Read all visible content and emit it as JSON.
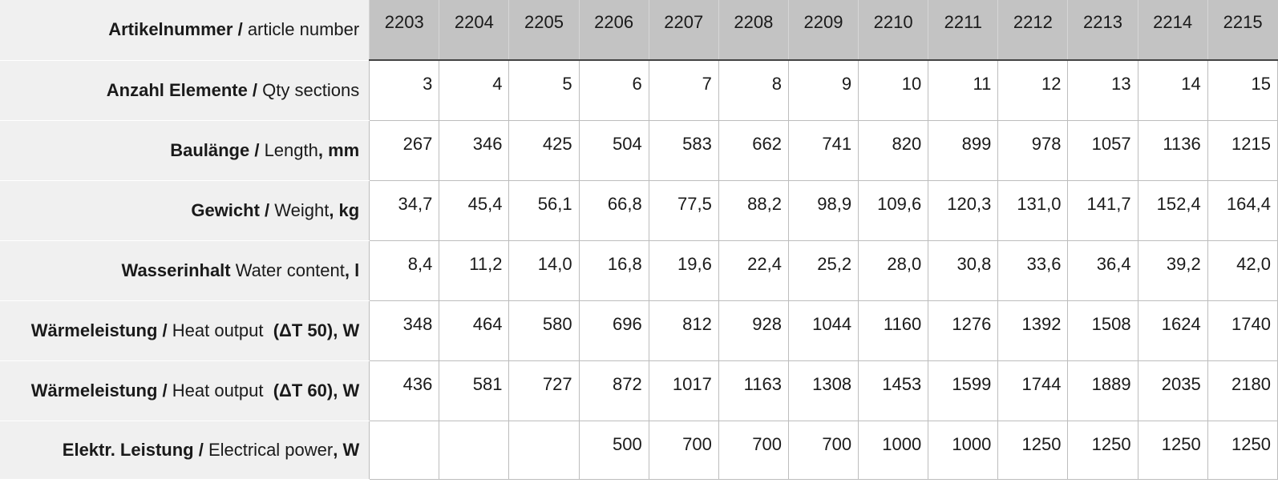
{
  "table": {
    "header_label": {
      "bold": "Artikelnummer /",
      "normal": " article number",
      "bold_after": ""
    },
    "article_numbers": [
      "2203",
      "2204",
      "2205",
      "2206",
      "2207",
      "2208",
      "2209",
      "2210",
      "2211",
      "2212",
      "2213",
      "2214",
      "2215"
    ],
    "rows": [
      {
        "label": {
          "bold": "Anzahl Elemente /",
          "normal": " Qty sections",
          "bold_after": ""
        },
        "values": [
          "3",
          "4",
          "5",
          "6",
          "7",
          "8",
          "9",
          "10",
          "11",
          "12",
          "13",
          "14",
          "15"
        ]
      },
      {
        "label": {
          "bold": "Baulänge /",
          "normal": " Length",
          "bold_after": ", mm"
        },
        "values": [
          "267",
          "346",
          "425",
          "504",
          "583",
          "662",
          "741",
          "820",
          "899",
          "978",
          "1057",
          "1136",
          "1215"
        ]
      },
      {
        "label": {
          "bold": "Gewicht /",
          "normal": " Weight",
          "bold_after": ", kg"
        },
        "values": [
          "34,7",
          "45,4",
          "56,1",
          "66,8",
          "77,5",
          "88,2",
          "98,9",
          "109,6",
          "120,3",
          "131,0",
          "141,7",
          "152,4",
          "164,4"
        ]
      },
      {
        "label": {
          "bold": "Wasserinhalt",
          "normal": " Water content",
          "bold_after": ", l"
        },
        "values": [
          "8,4",
          "11,2",
          "14,0",
          "16,8",
          "19,6",
          "22,4",
          "25,2",
          "28,0",
          "30,8",
          "33,6",
          "36,4",
          "39,2",
          "42,0"
        ]
      },
      {
        "label": {
          "bold": "Wärmeleistung /",
          "normal": " Heat output  ",
          "bold_after": "(ΔT 50), W"
        },
        "values": [
          "348",
          "464",
          "580",
          "696",
          "812",
          "928",
          "1044",
          "1160",
          "1276",
          "1392",
          "1508",
          "1624",
          "1740"
        ]
      },
      {
        "label": {
          "bold": "Wärmeleistung /",
          "normal": " Heat output  ",
          "bold_after": "(ΔT 60), W"
        },
        "values": [
          "436",
          "581",
          "727",
          "872",
          "1017",
          "1163",
          "1308",
          "1453",
          "1599",
          "1744",
          "1889",
          "2035",
          "2180"
        ]
      },
      {
        "label": {
          "bold": "Elektr. Leistung /",
          "normal": " Electrical power",
          "bold_after": ", W"
        },
        "values": [
          "",
          "",
          "",
          "500",
          "700",
          "700",
          "700",
          "1000",
          "1000",
          "1250",
          "1250",
          "1250",
          "1250"
        ]
      }
    ]
  }
}
